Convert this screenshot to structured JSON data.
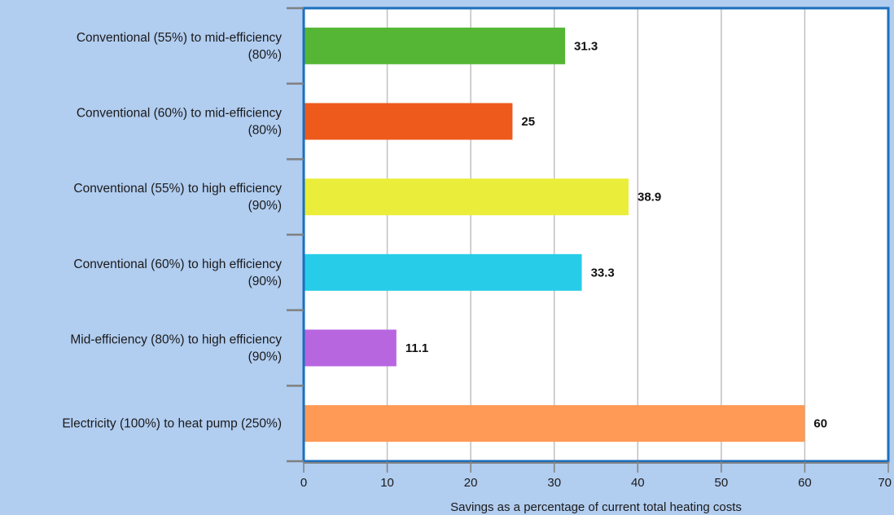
{
  "chart_data": {
    "type": "bar",
    "orientation": "horizontal",
    "title": "",
    "xlabel": "Savings as a percentage of current total heating costs",
    "ylabel": "",
    "xlim": [
      0,
      70
    ],
    "x_ticks": [
      0,
      10,
      20,
      30,
      40,
      50,
      60,
      70
    ],
    "grid": "vertical",
    "categories": [
      [
        "Conventional (55%) to mid-efficiency",
        "(80%)"
      ],
      [
        "Conventional (60%) to mid-efficiency",
        "(80%)"
      ],
      [
        "Conventional (55%) to high efficiency",
        "(90%)"
      ],
      [
        "Conventional (60%) to high efficiency",
        "(90%)"
      ],
      [
        "Mid-efficiency (80%) to high efficiency",
        "(90%)"
      ],
      [
        "Electricity (100%) to heat pump (250%)"
      ]
    ],
    "values": [
      31.3,
      25,
      38.9,
      33.3,
      11.1,
      60
    ],
    "data_labels": [
      "31.3",
      "25",
      "38.9",
      "33.3",
      "11.1",
      "60"
    ],
    "colors": [
      "#55b636",
      "#ee591c",
      "#eaee3a",
      "#27cde8",
      "#b866e0",
      "#fe9a55"
    ],
    "plot_background": "#ffffff",
    "plot_border_color": "#1b6fbd",
    "gridline_color": "#c0c0c0",
    "page_background": "#b1cdf0"
  }
}
